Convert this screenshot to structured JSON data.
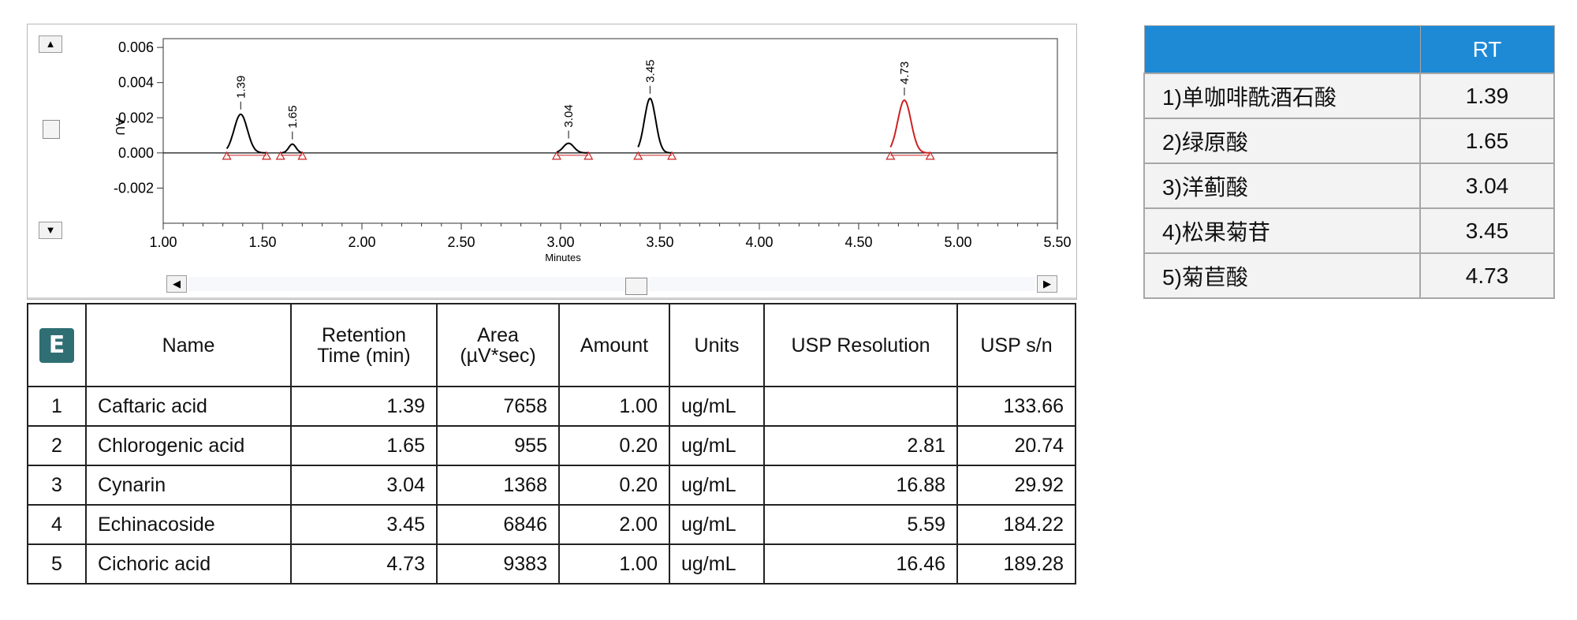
{
  "chart_data": {
    "type": "line",
    "xlabel": "Minutes",
    "ylabel": "AU",
    "xlim": [
      1.0,
      5.5
    ],
    "ylim": [
      -0.004,
      0.0065
    ],
    "x_ticks": [
      "1.00",
      "1.50",
      "2.00",
      "2.50",
      "3.00",
      "3.50",
      "4.00",
      "4.50",
      "5.00",
      "5.50"
    ],
    "y_ticks": [
      "0.006",
      "0.004",
      "0.002",
      "0.000",
      "-0.002"
    ],
    "peaks": [
      {
        "label": "1.39",
        "rt": 1.39,
        "height": 0.0022,
        "color": "#000000",
        "start": 1.32,
        "end": 1.52
      },
      {
        "label": "1.65",
        "rt": 1.65,
        "height": 0.0005,
        "color": "#000000",
        "start": 1.59,
        "end": 1.7
      },
      {
        "label": "3.04",
        "rt": 3.04,
        "height": 0.00055,
        "color": "#000000",
        "start": 2.98,
        "end": 3.14
      },
      {
        "label": "3.45",
        "rt": 3.45,
        "height": 0.0031,
        "color": "#000000",
        "start": 3.39,
        "end": 3.56
      },
      {
        "label": "4.73",
        "rt": 4.73,
        "height": 0.003,
        "color": "#cc2222",
        "start": 4.66,
        "end": 4.86
      }
    ],
    "grid": false
  },
  "results_table": {
    "headers": [
      "Name",
      "Retention Time (min)",
      "Area (µV*sec)",
      "Amount",
      "Units",
      "USP Resolution",
      "USP s/n"
    ],
    "rows": [
      {
        "no": "1",
        "name": "Caftaric acid",
        "rt": "1.39",
        "area": "7658",
        "amount": "1.00",
        "units": "ug/mL",
        "res": "",
        "sn": "133.66"
      },
      {
        "no": "2",
        "name": "Chlorogenic acid",
        "rt": "1.65",
        "area": "955",
        "amount": "0.20",
        "units": "ug/mL",
        "res": "2.81",
        "sn": "20.74"
      },
      {
        "no": "3",
        "name": "Cynarin",
        "rt": "3.04",
        "area": "1368",
        "amount": "0.20",
        "units": "ug/mL",
        "res": "16.88",
        "sn": "29.92"
      },
      {
        "no": "4",
        "name": "Echinacoside",
        "rt": "3.45",
        "area": "6846",
        "amount": "2.00",
        "units": "ug/mL",
        "res": "5.59",
        "sn": "184.22"
      },
      {
        "no": "5",
        "name": "Cichoric acid",
        "rt": "4.73",
        "area": "9383",
        "amount": "1.00",
        "units": "ug/mL",
        "res": "16.46",
        "sn": "189.28"
      }
    ],
    "logo_letter": "E"
  },
  "rt_table": {
    "header_rt": "RT",
    "rows": [
      {
        "name": "1)单咖啡酰酒石酸",
        "rt": "1.39"
      },
      {
        "name": "2)绿原酸",
        "rt": "1.65"
      },
      {
        "name": "3)洋蓟酸",
        "rt": "3.04"
      },
      {
        "name": "4)松果菊苷",
        "rt": "3.45"
      },
      {
        "name": "5)菊苣酸",
        "rt": "4.73"
      }
    ],
    "header_color": "#1e8ad6"
  }
}
